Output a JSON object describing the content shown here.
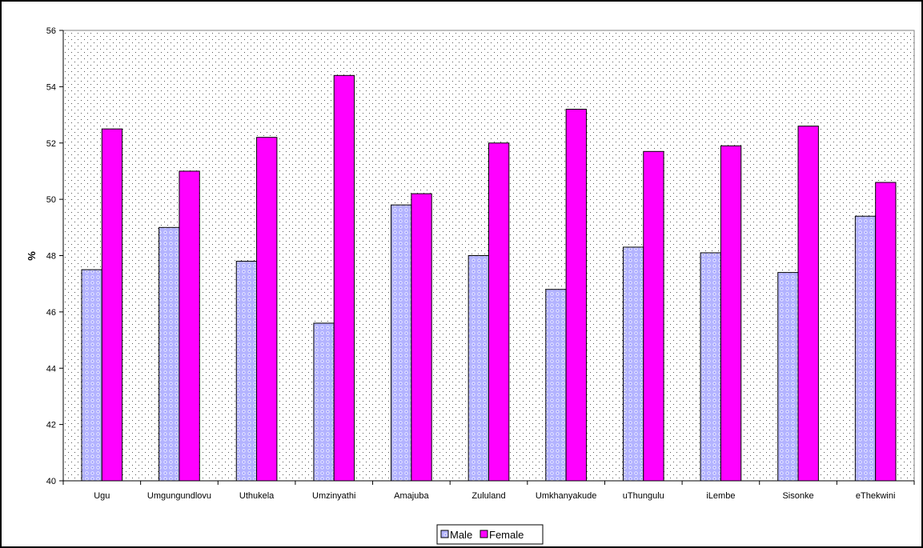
{
  "chart_data": {
    "type": "bar",
    "ylabel": "%",
    "ylim": [
      40,
      56
    ],
    "yticks": [
      40,
      42,
      44,
      46,
      48,
      50,
      52,
      54,
      56
    ],
    "grid": false,
    "legend_position": "bottom",
    "categories": [
      "Ugu",
      "Umgungundlovu",
      "Uthukela",
      "Umzinyathi",
      "Amajuba",
      "Zululand",
      "Umkhanyakude",
      "uThungulu",
      "iLembe",
      "Sisonke",
      "eThekwini"
    ],
    "series": [
      {
        "name": "Male",
        "color": "#9999ff",
        "pattern": "dots",
        "values": [
          47.5,
          49.0,
          47.8,
          45.6,
          49.8,
          48.0,
          46.8,
          48.3,
          48.1,
          47.4,
          49.4
        ]
      },
      {
        "name": "Female",
        "color": "#ff00ff",
        "values": [
          52.5,
          51.0,
          52.2,
          54.4,
          50.2,
          52.0,
          53.2,
          51.7,
          51.9,
          52.6,
          50.6
        ]
      }
    ]
  }
}
